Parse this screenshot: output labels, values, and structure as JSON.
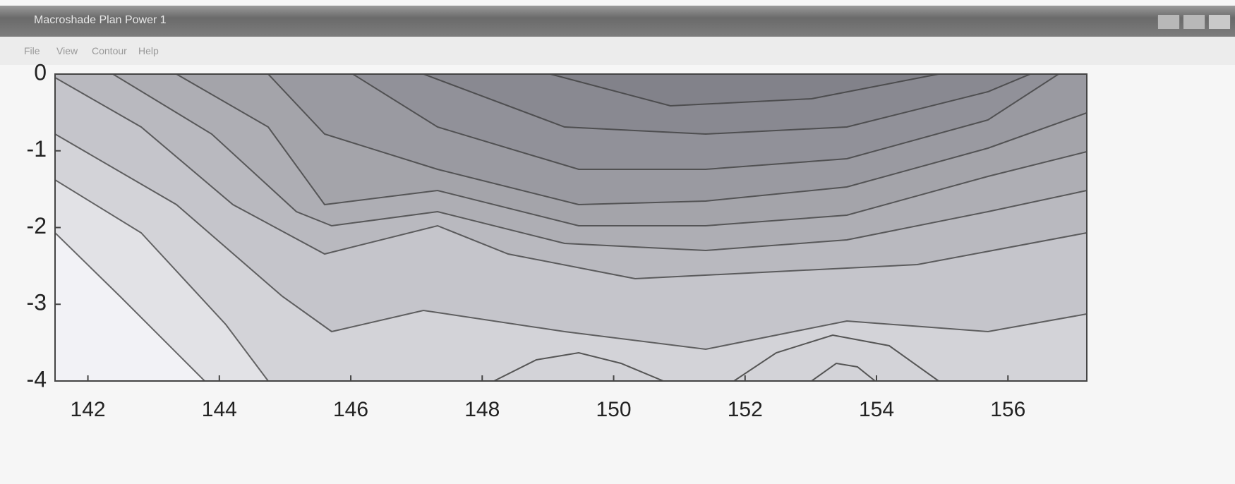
{
  "window": {
    "title": "Macroshade Plan Power 1",
    "menu": [
      "File",
      "View",
      "Contour",
      "Help"
    ]
  },
  "chart_data": {
    "type": "contour",
    "xlim": [
      141.5,
      157.2
    ],
    "xticks": [
      142,
      144,
      146,
      148,
      150,
      152,
      154,
      156
    ],
    "ylim": [
      -4,
      0
    ],
    "yticks": [
      0,
      -1,
      -2,
      -3,
      -4
    ]
  }
}
